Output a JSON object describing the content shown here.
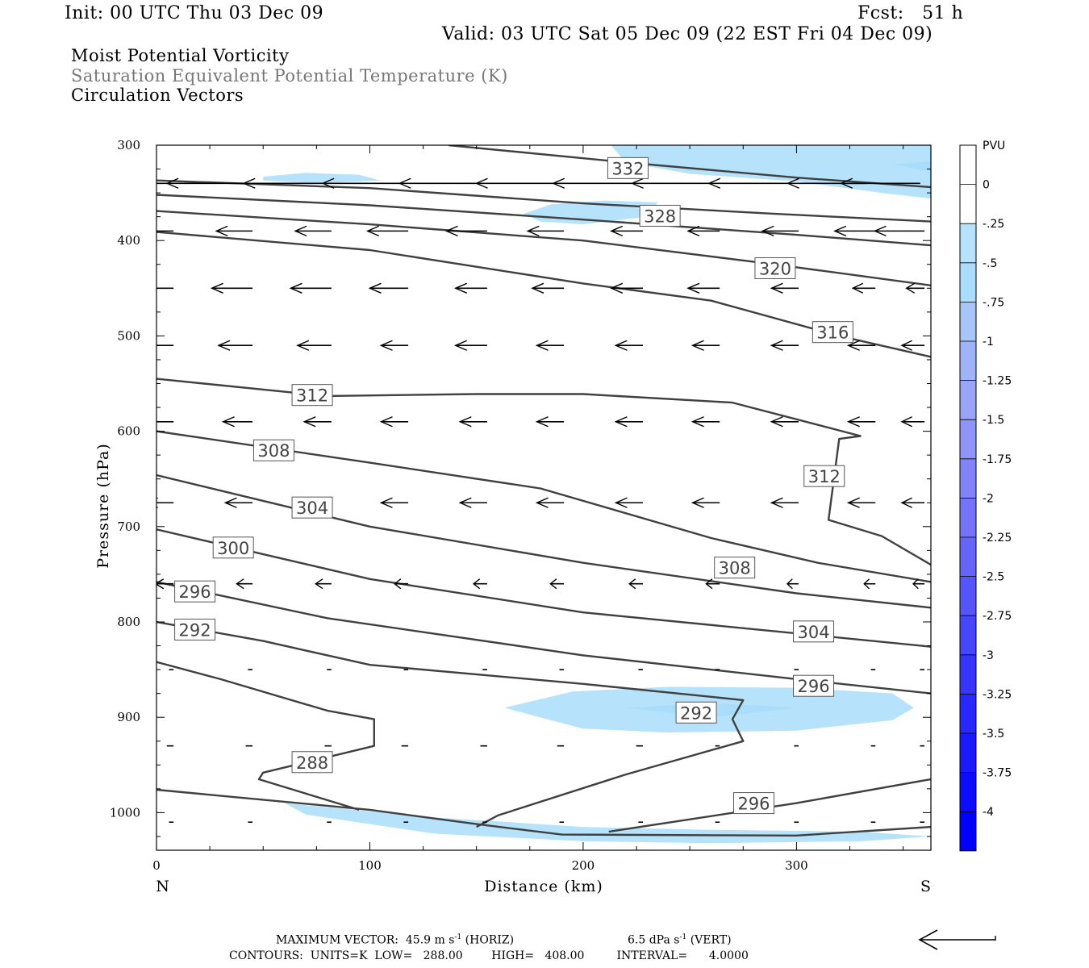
{
  "header": {
    "init": "Init: 00 UTC Thu 03 Dec 09",
    "fcst": "Fcst:   51 h",
    "valid": "Valid: 03 UTC Sat 05 Dec 09 (22 EST Fri 04 Dec 09)",
    "line1": "Moist Potential Vorticity",
    "line2": "Saturation Equivalent Potential Temperature (K)",
    "line3": "Circulation Vectors"
  },
  "footer": {
    "max_vector_prefix": "MAXIMUM VECTOR:  45.9 m s",
    "max_vector_horiz": "(HORIZ)",
    "max_vector_vert_prefix": "6.5 dPa s",
    "max_vector_vert": "(VERT)",
    "exp": "-1",
    "contours": "CONTOURS:  UNITS=K  LOW=   288.00        HIGH=   408.00         INTERVAL=      4.0000"
  },
  "colors": {
    "contour": "#404040",
    "light_blue": "#b6e3fb",
    "mid_blue": "#a7c6f7",
    "deep_blue": "#0000ff"
  },
  "chart_data": {
    "type": "cross-section",
    "xlabel": "Distance (km)",
    "ylabel": "Pressure (hPa)",
    "xlim": [
      0,
      363
    ],
    "ylim": [
      1040,
      300
    ],
    "xticks": [
      0,
      100,
      200,
      300
    ],
    "yticks": [
      300,
      400,
      500,
      600,
      700,
      800,
      900,
      1000
    ],
    "x_end_labels": {
      "left": "N",
      "right": "S"
    },
    "colorbar": {
      "title": "PVU",
      "levels": [
        "0",
        "-.25",
        "-.5",
        "-.75",
        "-1",
        "-1.25",
        "-1.5",
        "-1.75",
        "-2",
        "-2.25",
        "-2.5",
        "-2.75",
        "-3",
        "-3.25",
        "-3.5",
        "-3.75",
        "-4"
      ],
      "colors": [
        "#ffffff",
        "#b6e3fb",
        "#aadcfb",
        "#a7c6f7",
        "#9fb3f7",
        "#9aa5f8",
        "#8f94f8",
        "#8283f8",
        "#7573f8",
        "#6565f9",
        "#5555fa",
        "#4646fa",
        "#3636fb",
        "#2828fc",
        "#1a1afd",
        "#0c0cfe",
        "#0000ff"
      ]
    },
    "contours": [
      {
        "level": 332,
        "points": [
          [
            137,
            300
          ],
          [
            220,
            318
          ],
          [
            300,
            334
          ],
          [
            363,
            344
          ]
        ]
      },
      {
        "level": 328,
        "points": [
          [
            0,
            337
          ],
          [
            100,
            345
          ],
          [
            200,
            361
          ],
          [
            290,
            372
          ],
          [
            363,
            380
          ]
        ]
      },
      {
        "level": 324,
        "points": [
          [
            0,
            352
          ],
          [
            100,
            363
          ],
          [
            200,
            378
          ],
          [
            300,
            394
          ],
          [
            363,
            405
          ]
        ]
      },
      {
        "level": 320,
        "points": [
          [
            0,
            369
          ],
          [
            100,
            383
          ],
          [
            200,
            400
          ],
          [
            290,
            425
          ],
          [
            363,
            447
          ]
        ]
      },
      {
        "level": 316,
        "points": [
          [
            0,
            391
          ],
          [
            100,
            410
          ],
          [
            200,
            445
          ],
          [
            260,
            463
          ],
          [
            320,
            500
          ],
          [
            363,
            522
          ]
        ]
      },
      {
        "level": 312,
        "points": [
          [
            0,
            545
          ],
          [
            80,
            563
          ],
          [
            150,
            561
          ],
          [
            200,
            561
          ],
          [
            270,
            570
          ],
          [
            330,
            605
          ],
          [
            320,
            608
          ],
          [
            315,
            693
          ],
          [
            340,
            710
          ],
          [
            363,
            740
          ]
        ]
      },
      {
        "level": 308,
        "points": [
          [
            0,
            600
          ],
          [
            100,
            633
          ],
          [
            180,
            660
          ],
          [
            260,
            712
          ],
          [
            310,
            738
          ],
          [
            363,
            758
          ]
        ]
      },
      {
        "level": 304,
        "points": [
          [
            0,
            646
          ],
          [
            100,
            700
          ],
          [
            200,
            738
          ],
          [
            300,
            770
          ],
          [
            363,
            785
          ]
        ]
      },
      {
        "level": 300,
        "points": [
          [
            0,
            703
          ],
          [
            100,
            755
          ],
          [
            200,
            790
          ],
          [
            300,
            812
          ],
          [
            363,
            826
          ]
        ]
      },
      {
        "level": 296,
        "points": [
          [
            0,
            758
          ],
          [
            80,
            796
          ],
          [
            200,
            835
          ],
          [
            300,
            860
          ],
          [
            363,
            875
          ]
        ]
      },
      {
        "level": 292,
        "points": [
          [
            0,
            800
          ],
          [
            50,
            820
          ],
          [
            100,
            845
          ],
          [
            200,
            865
          ],
          [
            275,
            882
          ],
          [
            270,
            902
          ],
          [
            275,
            925
          ],
          [
            220,
            960
          ],
          [
            160,
            1003
          ],
          [
            150,
            1015
          ]
        ]
      },
      {
        "level": 288,
        "points": [
          [
            0,
            842
          ],
          [
            30,
            860
          ],
          [
            80,
            893
          ],
          [
            102,
            902
          ],
          [
            102,
            930
          ],
          [
            50,
            958
          ],
          [
            48,
            965
          ],
          [
            95,
            997
          ]
        ]
      },
      {
        "level": 296,
        "points": [
          [
            212,
            1020
          ],
          [
            300,
            990
          ],
          [
            363,
            965
          ]
        ]
      },
      {
        "level": 300,
        "points": [
          [
            0,
            976
          ],
          [
            100,
            997
          ],
          [
            150,
            1012
          ],
          [
            190,
            1023
          ],
          [
            300,
            1024
          ],
          [
            363,
            1015
          ]
        ]
      }
    ],
    "contour_labels": [
      {
        "text": "332",
        "x": 221,
        "y": 324
      },
      {
        "text": "328",
        "x": 236,
        "y": 374
      },
      {
        "text": "320",
        "x": 290,
        "y": 429
      },
      {
        "text": "316",
        "x": 317,
        "y": 496
      },
      {
        "text": "312",
        "x": 73,
        "y": 562
      },
      {
        "text": "308",
        "x": 55,
        "y": 620
      },
      {
        "text": "312",
        "x": 313,
        "y": 647
      },
      {
        "text": "304",
        "x": 73,
        "y": 680
      },
      {
        "text": "300",
        "x": 36,
        "y": 722
      },
      {
        "text": "308",
        "x": 271,
        "y": 743
      },
      {
        "text": "296",
        "x": 18,
        "y": 768
      },
      {
        "text": "292",
        "x": 18,
        "y": 808
      },
      {
        "text": "304",
        "x": 308,
        "y": 810
      },
      {
        "text": "296",
        "x": 308,
        "y": 867
      },
      {
        "text": "292",
        "x": 253,
        "y": 895
      },
      {
        "text": "288",
        "x": 73,
        "y": 947
      },
      {
        "text": "296",
        "x": 280,
        "y": 990
      }
    ],
    "pv_regions": [
      {
        "level": "-.25",
        "points": [
          [
            213,
            300
          ],
          [
            363,
            300
          ],
          [
            363,
            356
          ],
          [
            340,
            350
          ],
          [
            300,
            338
          ],
          [
            250,
            330
          ],
          [
            220,
            318
          ]
        ]
      },
      {
        "level": "-.5",
        "points": [
          [
            345,
            320
          ],
          [
            363,
            317
          ],
          [
            363,
            328
          ]
        ]
      },
      {
        "level": "-.25",
        "points": [
          [
            50,
            333
          ],
          [
            70,
            329
          ],
          [
            95,
            331
          ],
          [
            105,
            337
          ],
          [
            75,
            340
          ],
          [
            50,
            337
          ]
        ]
      },
      {
        "level": "-.25",
        "points": [
          [
            172,
            372
          ],
          [
            185,
            362
          ],
          [
            210,
            358
          ],
          [
            235,
            360
          ],
          [
            230,
            375
          ],
          [
            200,
            383
          ],
          [
            180,
            380
          ]
        ]
      },
      {
        "level": "-.25",
        "points": [
          [
            163,
            890
          ],
          [
            195,
            873
          ],
          [
            240,
            868
          ],
          [
            300,
            869
          ],
          [
            345,
            875
          ],
          [
            355,
            890
          ],
          [
            345,
            903
          ],
          [
            300,
            914
          ],
          [
            240,
            916
          ],
          [
            200,
            912
          ]
        ]
      },
      {
        "level": "-.5",
        "points": [
          [
            220,
            890
          ],
          [
            260,
            885
          ],
          [
            300,
            890
          ],
          [
            260,
            900
          ]
        ]
      },
      {
        "level": "-.25",
        "points": [
          [
            60,
            990
          ],
          [
            130,
            1005
          ],
          [
            200,
            1015
          ],
          [
            260,
            1018
          ],
          [
            330,
            1020
          ],
          [
            363,
            1025
          ],
          [
            330,
            1030
          ],
          [
            260,
            1032
          ],
          [
            200,
            1030
          ],
          [
            130,
            1022
          ],
          [
            70,
            1002
          ]
        ]
      }
    ],
    "vectors": [
      {
        "p": 340,
        "u": [
          -35,
          -35,
          -35,
          -35,
          -35,
          -35,
          -35,
          -35,
          -35,
          -35,
          -35
        ],
        "xs": [
          5,
          42,
          78,
          115,
          151,
          187,
          223,
          260,
          296,
          333,
          358
        ]
      },
      {
        "p": 390,
        "u": [
          -16,
          -16,
          -16,
          -18,
          -18,
          -16,
          -14,
          -14,
          -16,
          -18,
          -22
        ]
      },
      {
        "p": 450,
        "u": [
          -18,
          -18,
          -18,
          -17,
          -14,
          -14,
          -14,
          -14,
          -12,
          -10,
          -8
        ]
      },
      {
        "p": 510,
        "u": [
          -15,
          -15,
          -15,
          -12,
          -14,
          -12,
          -12,
          -12,
          -12,
          -12,
          -10
        ]
      },
      {
        "p": 590,
        "u": [
          -13,
          -13,
          -12,
          -12,
          -12,
          -12,
          -12,
          -12,
          -12,
          -12,
          -10
        ]
      },
      {
        "p": 675,
        "u": [
          -12,
          -12,
          -12,
          -12,
          -12,
          -12,
          -12,
          -12,
          -12,
          -12,
          -10
        ]
      },
      {
        "p": 760,
        "u": [
          -8,
          -7,
          -7,
          -6,
          -6,
          -6,
          -6,
          -6,
          -5,
          -5,
          -5
        ]
      },
      {
        "p": 850,
        "u": [
          -2,
          -2,
          -2,
          -2,
          -2,
          -2,
          -2,
          -2,
          -2,
          -2,
          -2
        ]
      },
      {
        "p": 930,
        "u": [
          -3,
          -3,
          -3,
          -3,
          -3,
          -3,
          -3,
          -2,
          -2,
          -2,
          -2
        ]
      },
      {
        "p": 1010,
        "u": [
          -2,
          -2,
          -2,
          -2,
          -2,
          -2,
          -2,
          -2,
          -2,
          -2,
          -2
        ]
      }
    ]
  }
}
